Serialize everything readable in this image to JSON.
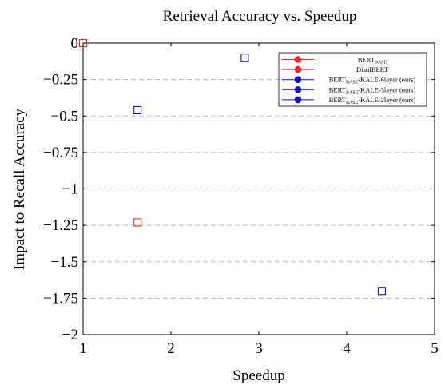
{
  "chart_data": {
    "type": "scatter",
    "title": "Retrieval Accuracy vs. Speedup",
    "xlabel": "Speedup",
    "ylabel": "Impact to Recall Accuracy",
    "xlim": [
      1,
      5
    ],
    "ylim": [
      -2,
      0
    ],
    "x_ticks": [
      1,
      2,
      3,
      4,
      5
    ],
    "x_tick_labels": [
      "1",
      "2",
      "3",
      "4",
      "5"
    ],
    "y_ticks": [
      0,
      -0.25,
      -0.5,
      -0.75,
      -1,
      -1.25,
      -1.5,
      -1.75,
      -2
    ],
    "y_tick_labels": [
      "0",
      "−0.25",
      "−0.5",
      "−0.75",
      "−1",
      "−1.25",
      "−1.5",
      "−1.75",
      "−2"
    ],
    "grid": "horizontal-dashed",
    "legend_position": "top-right",
    "series": [
      {
        "name": "BERT",
        "subscript": "BASE",
        "suffix": "",
        "color": "#e8282b",
        "points": [
          [
            1.0,
            0.0
          ]
        ]
      },
      {
        "name": "DistilBERT",
        "subscript": "",
        "suffix": "",
        "color": "#e8282b",
        "points": [
          [
            1.62,
            -1.23
          ]
        ]
      },
      {
        "name": "BERT",
        "subscript": "BASE",
        "suffix": "-KALE-6layer (ours)",
        "color": "#1010c8",
        "points": [
          [
            1.62,
            -0.46
          ]
        ]
      },
      {
        "name": "BERT",
        "subscript": "BASE",
        "suffix": "-KALE-3layer (ours)",
        "color": "#1010c8",
        "points": [
          [
            2.84,
            -0.1
          ]
        ]
      },
      {
        "name": "BERT",
        "subscript": "BASE",
        "suffix": "-KALE-2layer (ours)",
        "color": "#1010c8",
        "points": [
          [
            4.4,
            -1.7
          ]
        ]
      }
    ]
  }
}
